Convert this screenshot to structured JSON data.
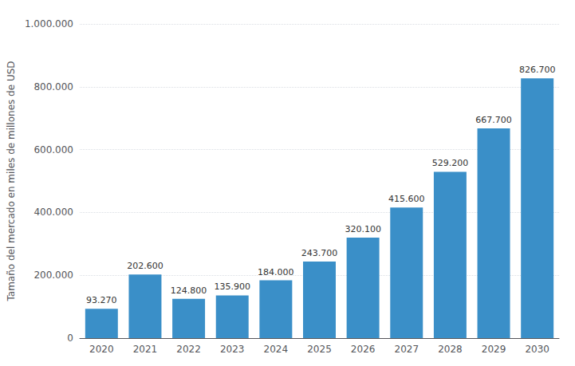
{
  "chart_data": {
    "type": "bar",
    "categories": [
      "2020",
      "2021",
      "2022",
      "2023",
      "2024",
      "2025",
      "2026",
      "2027",
      "2028",
      "2029",
      "2030"
    ],
    "values": [
      93270,
      202600,
      124800,
      135900,
      184000,
      243700,
      320100,
      415600,
      529200,
      667700,
      826700
    ],
    "value_labels": [
      "93.270",
      "202.600",
      "124.800",
      "135.900",
      "184.000",
      "243.700",
      "320.100",
      "415.600",
      "529.200",
      "667.700",
      "826.700"
    ],
    "data_labels": true,
    "color": "#3a8fc8",
    "ylabel": "Tamaño del mercado en miles de millones de USD",
    "ylim": [
      0,
      1000000
    ],
    "yticks": [
      0,
      {
        "value": 200000,
        "label": "200.000"
      },
      {
        "value": 400000,
        "label": "400.000"
      },
      {
        "value": 600000,
        "label": "600.000"
      },
      {
        "value": 800000,
        "label": "800.000"
      },
      {
        "value": 1000000,
        "label": "1.000.000"
      }
    ],
    "grid": true
  }
}
